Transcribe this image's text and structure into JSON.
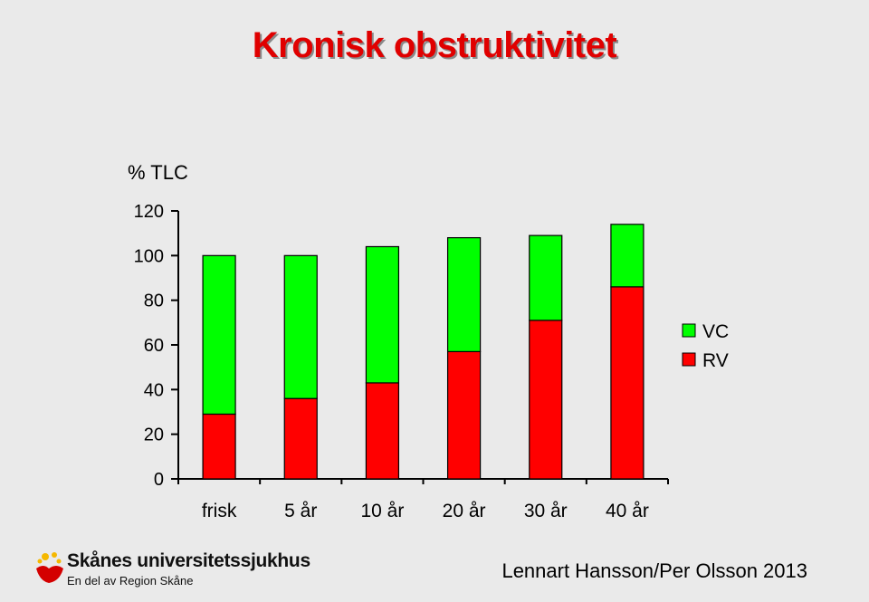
{
  "title": "Kronisk obstruktivitet",
  "footer": {
    "logo_name": "Skånes universitetssjukhus",
    "logo_subtitle": "En del av Region Skåne",
    "author": "Lennart  Hansson/Per Olsson 2013"
  },
  "chart_data": {
    "type": "bar",
    "stacked": true,
    "title": "",
    "ylabel": "% TLC",
    "xlabel": "",
    "ylim": [
      0,
      120
    ],
    "yticks": [
      0,
      20,
      40,
      60,
      80,
      100,
      120
    ],
    "categories": [
      "frisk",
      "5 år",
      "10 år",
      "20 år",
      "30 år",
      "40 år"
    ],
    "series": [
      {
        "name": "RV",
        "color": "#ff0000",
        "values": [
          29,
          36,
          43,
          57,
          71,
          86
        ]
      },
      {
        "name": "VC",
        "color": "#00ff00",
        "values": [
          71,
          64,
          61,
          51,
          38,
          28
        ]
      }
    ],
    "legend": {
      "placement": "right",
      "order": [
        "VC",
        "RV"
      ]
    },
    "grid": false
  }
}
